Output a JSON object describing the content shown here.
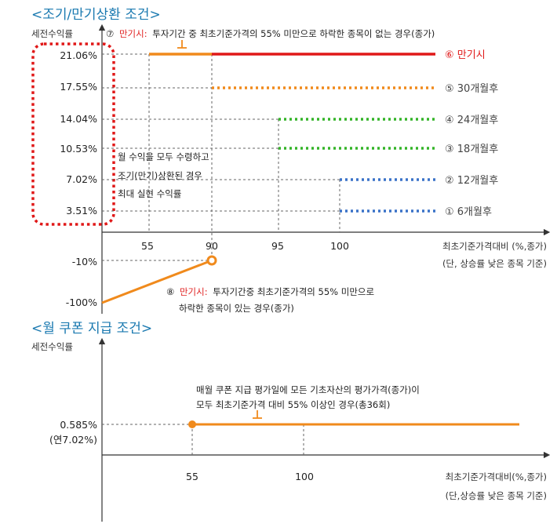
{
  "chart_data": [
    {
      "type": "line",
      "title": "<조기/만기상환 조건>",
      "ylabel": "세전수익률",
      "xlabel": "최초기준가격대비 (%,종가)",
      "xlabel_note": "(단, 상승률 낮은 종목 기준)",
      "x_ticks": [
        "55",
        "90",
        "95",
        "100"
      ],
      "y_ticks": [
        "21.06%",
        "17.55%",
        "14.04%",
        "10.53%",
        "7.02%",
        "3.51%",
        "-10%",
        "-100%"
      ],
      "colors": {
        "maturity": "#e01818",
        "orange": "#f08a1c",
        "green": "#34b428",
        "blue": "#3a72c8",
        "highlight_box": "#e01818"
      },
      "series": [
        {
          "name": "⑥ 만기시",
          "x_from": 55,
          "y": 21.06,
          "style": "solid-red"
        },
        {
          "name": "⑤ 30개월후",
          "x_from": 90,
          "y": 17.55,
          "style": "dotted-orange"
        },
        {
          "name": "④ 24개월후",
          "x_from": 95,
          "y": 14.04,
          "style": "dotted-green"
        },
        {
          "name": "③ 18개월후",
          "x_from": 95,
          "y": 10.53,
          "style": "dotted-green"
        },
        {
          "name": "② 12개월후",
          "x_from": 100,
          "y": 7.02,
          "style": "dotted-blue"
        },
        {
          "name": "① 6개월후",
          "x_from": 100,
          "y": 3.51,
          "style": "dotted-blue"
        }
      ],
      "loss_segment": {
        "x": [
          0,
          90
        ],
        "y": [
          -100,
          -10
        ]
      },
      "annotation_top_num": "⑦",
      "annotation_top_red": "만기시:",
      "annotation_top_text": "투자기간 중 최초기준가격의 55% 미만으로 하락한 종목이 없는 경우(종가)",
      "annotation_middle": [
        "월 수익을 모두 수령하고",
        "조기(만기)상환된 경우",
        "최대 실현 수익률"
      ],
      "annotation_bottom_num": "⑧",
      "annotation_bottom_red": "만기시:",
      "annotation_bottom_line1": "투자기간중 최초기준가격의 55% 미만으로",
      "annotation_bottom_line2": "하락한 종목이 있는 경우(종가)"
    },
    {
      "type": "line",
      "title": "<월 쿠폰 지급 조건>",
      "ylabel": "세전수익률",
      "xlabel": "최초기준가격대비(%,종가)",
      "xlabel_note": "(단,상승률 낮은 종목 기준)",
      "x_ticks": [
        "55",
        "100"
      ],
      "y_tick": "0.585%",
      "y_tick_sub": "(연7.02%)",
      "series": [
        {
          "x_from": 55,
          "y": 0.585,
          "style": "solid-orange"
        }
      ],
      "annotation_line1": "매월 쿠폰 지급 평가일에 모든 기초자산의 평가가격(종가)이",
      "annotation_line2": "모두 최초기준가격 대비 55% 이상인 경우(총36회)"
    }
  ]
}
